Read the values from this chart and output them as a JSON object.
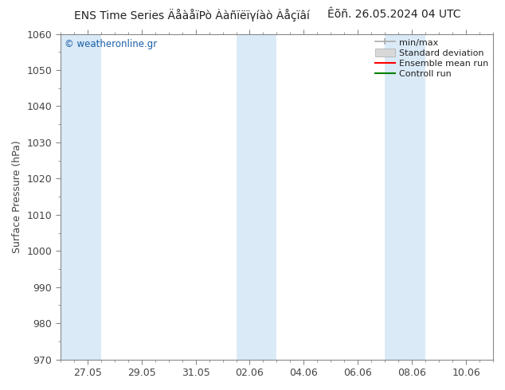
{
  "title_left": "ENS Time Series ÄåàåïPò Ààñïëïγíàò Àåçïâí",
  "title_right": "Êõñ. 26.05.2024 04 UTC",
  "ylabel": "Surface Pressure (hPa)",
  "ylim": [
    970,
    1060
  ],
  "yticks": [
    970,
    980,
    990,
    1000,
    1010,
    1020,
    1030,
    1040,
    1050,
    1060
  ],
  "bg_color": "#ffffff",
  "plot_bg_color": "#ffffff",
  "band_color": "#daeaf7",
  "watermark": "© weatheronline.gr",
  "watermark_color": "#1a5fa8",
  "legend_items": [
    "min/max",
    "Standard deviation",
    "Ensemble mean run",
    "Controll run"
  ],
  "x_tick_labels": [
    "27.05",
    "29.05",
    "31.05",
    "02.06",
    "04.06",
    "06.06",
    "08.06",
    "10.06"
  ],
  "x_tick_positions": [
    1,
    3,
    5,
    7,
    9,
    11,
    13,
    15
  ],
  "xlim": [
    0,
    16
  ],
  "band_ranges": [
    [
      0,
      1.5
    ],
    [
      6.5,
      8
    ],
    [
      12,
      13.5
    ]
  ],
  "title_fontsize": 10,
  "axis_fontsize": 9,
  "tick_color": "#444444",
  "spine_color": "#888888"
}
